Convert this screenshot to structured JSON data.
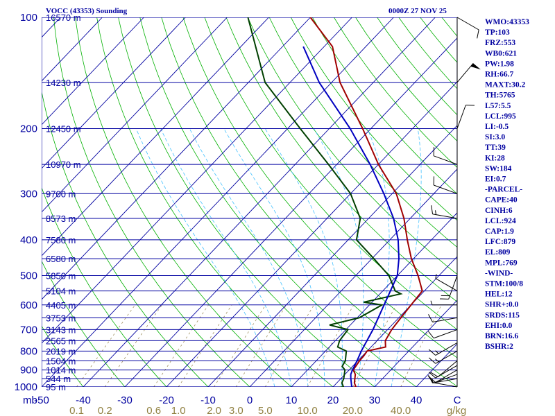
{
  "header": {
    "title": "VOCC (43353) Sounding",
    "time": "0000Z 27 NOV 25"
  },
  "chart_data": {
    "type": "skew-t",
    "title": "VOCC (43353) Sounding",
    "pressure_axis": {
      "unit": "mb",
      "unit_label": "mb",
      "ticks": [
        100,
        200,
        300,
        400,
        500,
        600,
        700,
        800,
        900,
        1000
      ],
      "range": [
        1000,
        100
      ]
    },
    "temperature_axis": {
      "unit": "C",
      "unit_label": "C",
      "ticks": [
        -50,
        -40,
        -30,
        -20,
        -10,
        0,
        10,
        20,
        30,
        40
      ],
      "range": [
        -50,
        50
      ]
    },
    "mixing_ratio": {
      "unit": "g/kg",
      "labels": [
        "0.1",
        "0.2",
        "0.6",
        "1.0",
        "2.0",
        "3.0",
        "5.0",
        "10.0",
        "20.0",
        "40.0"
      ],
      "values": [
        0.1,
        0.2,
        0.6,
        1.0,
        2.0,
        3.0,
        5.0,
        10.0,
        20.0,
        40.0
      ]
    },
    "heights": [
      {
        "p": 100,
        "label": "16570 m"
      },
      {
        "p": 150,
        "label": "14230 m"
      },
      {
        "p": 200,
        "label": "12450 m"
      },
      {
        "p": 250,
        "label": "10970 m"
      },
      {
        "p": 300,
        "label": "9700 m"
      },
      {
        "p": 350,
        "label": "8573 m"
      },
      {
        "p": 400,
        "label": "7580 m"
      },
      {
        "p": 450,
        "label": "6580 m"
      },
      {
        "p": 500,
        "label": "5850 m"
      },
      {
        "p": 550,
        "label": "5104 m"
      },
      {
        "p": 600,
        "label": "4405 m"
      },
      {
        "p": 650,
        "label": "3753 m"
      },
      {
        "p": 700,
        "label": "3143 m"
      },
      {
        "p": 750,
        "label": "2565 m"
      },
      {
        "p": 800,
        "label": "2019 m"
      },
      {
        "p": 850,
        "label": "1504 m"
      },
      {
        "p": 900,
        "label": "1014 m"
      },
      {
        "p": 950,
        "label": "544 m"
      },
      {
        "p": 1000,
        "label": "95 m"
      }
    ],
    "series": [
      {
        "name": "Temperature",
        "color": "#a00000",
        "points": [
          [
            1008,
            24.5
          ],
          [
            1000,
            25.5
          ],
          [
            975,
            24.2
          ],
          [
            925,
            22.5
          ],
          [
            900,
            21.0
          ],
          [
            850,
            20.4
          ],
          [
            825,
            20.3
          ],
          [
            800,
            20.0
          ],
          [
            780,
            23.5
          ],
          [
            750,
            22.0
          ],
          [
            700,
            21.0
          ],
          [
            650,
            20.5
          ],
          [
            600,
            20.0
          ],
          [
            550,
            19.5
          ],
          [
            500,
            15.0
          ],
          [
            450,
            9.5
          ],
          [
            400,
            4.2
          ],
          [
            350,
            -1.5
          ],
          [
            300,
            -9.0
          ],
          [
            250,
            -20.0
          ],
          [
            200,
            -32.0
          ],
          [
            150,
            -48.0
          ],
          [
            120,
            -58.0
          ],
          [
            100,
            -70.0
          ]
        ]
      },
      {
        "name": "Dewpoint",
        "color": "#004000",
        "points": [
          [
            1008,
            20.5
          ],
          [
            1000,
            22.5
          ],
          [
            975,
            21.2
          ],
          [
            950,
            20.7
          ],
          [
            900,
            19.0
          ],
          [
            880,
            17.5
          ],
          [
            850,
            17.0
          ],
          [
            800,
            15.0
          ],
          [
            780,
            12.0
          ],
          [
            750,
            11.0
          ],
          [
            700,
            10.5
          ],
          [
            680,
            5.0
          ],
          [
            650,
            10.5
          ],
          [
            600,
            13.0
          ],
          [
            590,
            8.0
          ],
          [
            560,
            15.0
          ],
          [
            550,
            13.0
          ],
          [
            500,
            8.0
          ],
          [
            450,
            0.5
          ],
          [
            400,
            -8.0
          ],
          [
            350,
            -12.0
          ],
          [
            300,
            -20.0
          ],
          [
            250,
            -32.0
          ],
          [
            200,
            -47.0
          ],
          [
            150,
            -66.0
          ],
          [
            100,
            -85.0
          ]
        ]
      },
      {
        "name": "Parcel",
        "color": "#0000c0",
        "points": [
          [
            1008,
            24.5
          ],
          [
            1000,
            24.5
          ],
          [
            950,
            22.4
          ],
          [
            925,
            21.4
          ],
          [
            900,
            20.8
          ],
          [
            850,
            19.8
          ],
          [
            800,
            18.6
          ],
          [
            700,
            16.5
          ],
          [
            600,
            13.5
          ],
          [
            500,
            10.0
          ],
          [
            450,
            6.5
          ],
          [
            400,
            2.0
          ],
          [
            350,
            -4.0
          ],
          [
            300,
            -12.0
          ],
          [
            250,
            -22.0
          ],
          [
            200,
            -35.0
          ],
          [
            150,
            -53.0
          ],
          [
            120,
            -65.0
          ]
        ]
      }
    ],
    "wind_barbs": [
      {
        "p": 1000,
        "dir": 280,
        "speed": 5
      },
      {
        "p": 950,
        "dir": 260,
        "speed": 10
      },
      {
        "p": 925,
        "dir": 250,
        "speed": 10
      },
      {
        "p": 900,
        "dir": 240,
        "speed": 10
      },
      {
        "p": 875,
        "dir": 240,
        "speed": 10
      },
      {
        "p": 850,
        "dir": 230,
        "speed": 10
      },
      {
        "p": 800,
        "dir": 240,
        "speed": 15
      },
      {
        "p": 760,
        "dir": 240,
        "speed": 15
      },
      {
        "p": 700,
        "dir": 250,
        "speed": 10
      },
      {
        "p": 650,
        "dir": 260,
        "speed": 10
      },
      {
        "p": 600,
        "dir": 270,
        "speed": 5
      },
      {
        "p": 550,
        "dir": 300,
        "speed": 5
      },
      {
        "p": 500,
        "dir": 200,
        "speed": 20
      },
      {
        "p": 350,
        "dir": 280,
        "speed": 15
      },
      {
        "p": 300,
        "dir": 290,
        "speed": 10
      },
      {
        "p": 250,
        "dir": 290,
        "speed": 10
      },
      {
        "p": 200,
        "dir": 20,
        "speed": 10
      },
      {
        "p": 150,
        "dir": 40,
        "speed": 50
      },
      {
        "p": 100,
        "dir": 120,
        "speed": 10
      }
    ],
    "indices": [
      "WMO:43353",
      "TP:103",
      "FRZ:553",
      "WB0:621",
      "PW:1.98",
      "RH:66.7",
      "MAXT:30.2",
      "TH:5765",
      "L57:5.5",
      "LCL:995",
      "LI:-0.5",
      "SI:3.0",
      "TT:39",
      "KI:28",
      "SW:184",
      "EI:0.7",
      "-PARCEL-",
      "CAPE:40",
      "CINH:6",
      "LCL:924",
      "CAP:1.9",
      "LFC:879",
      "EL:809",
      "MPL:769",
      "-WIND-",
      "STM:100/8",
      "HEL:12",
      "SHR+:0.0",
      "SRDS:115",
      "EHI:0.0",
      "BRN:16.6",
      "BSHR:2"
    ]
  },
  "colors": {
    "isobar": "#0000a0",
    "isotherm": "#0000a0",
    "dry_adiabat": "#00b000",
    "moist_adiabat": "#40c0ff",
    "mixing_ratio": "#a09060",
    "text": "#0000a0",
    "mix_text": "#908040"
  }
}
